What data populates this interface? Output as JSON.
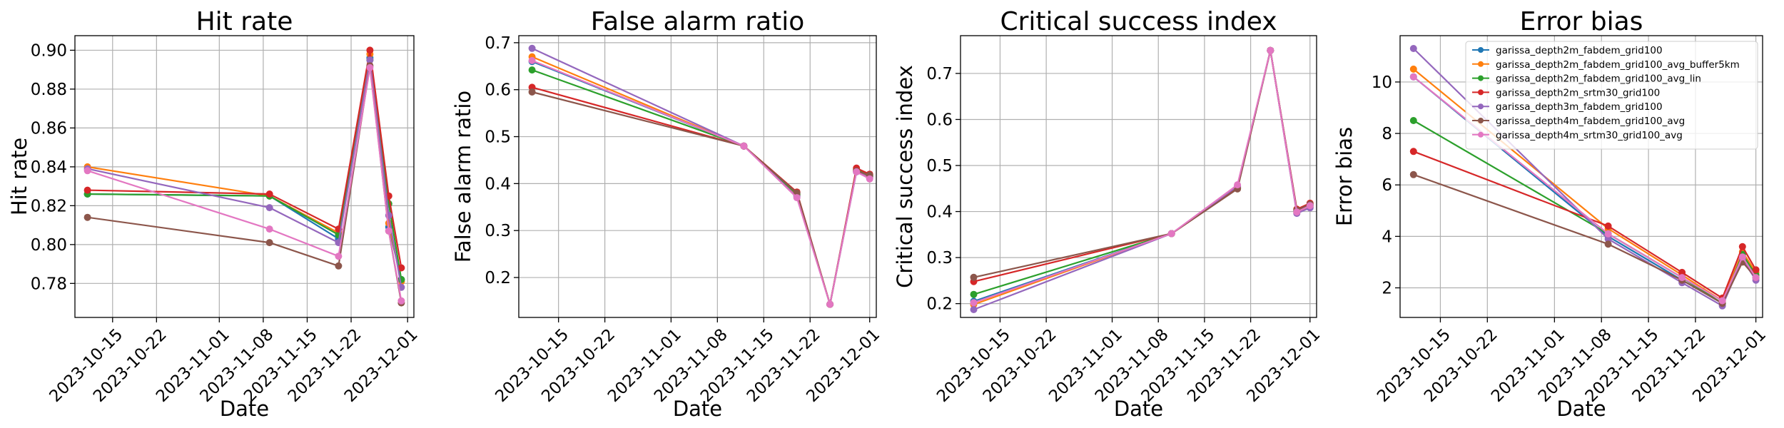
{
  "chart_data": [
    {
      "type": "line",
      "title": "Hit rate",
      "xlabel": "Date",
      "ylabel": "Hit rate",
      "x_tick_labels": [
        "2023-10-15",
        "2023-10-22",
        "2023-11-01",
        "2023-11-08",
        "2023-11-15",
        "2023-11-22",
        "2023-12-01"
      ],
      "y_ticks": [
        0.78,
        0.8,
        0.82,
        0.84,
        0.86,
        0.88,
        0.9
      ],
      "y_tick_labels": [
        "0.78",
        "0.80",
        "0.82",
        "0.84",
        "0.86",
        "0.88",
        "0.90"
      ],
      "xlim": [
        "2023-10-09",
        "2023-12-02"
      ],
      "ylim": [
        0.7625,
        0.9075
      ],
      "grid": true,
      "series": [
        {
          "name": "garissa_depth2m_fabdem_grid100",
          "color": "#1f77b4",
          "x": [
            "2023-10-11",
            "2023-11-09",
            "2023-11-20",
            "2023-11-25",
            "2023-11-28",
            "2023-11-30"
          ],
          "y": [
            0.826,
            0.825,
            0.803,
            0.896,
            0.809,
            0.782
          ]
        },
        {
          "name": "garissa_depth2m_fabdem_grid100_avg_buffer5km",
          "color": "#ff7f0e",
          "x": [
            "2023-10-11",
            "2023-11-09",
            "2023-11-20",
            "2023-11-25",
            "2023-11-28",
            "2023-11-30"
          ],
          "y": [
            0.84,
            0.825,
            0.806,
            0.898,
            0.811,
            0.781
          ]
        },
        {
          "name": "garissa_depth2m_fabdem_grid100_avg_lin",
          "color": "#2ca02c",
          "x": [
            "2023-10-11",
            "2023-11-09",
            "2023-11-20",
            "2023-11-25",
            "2023-11-28",
            "2023-11-30"
          ],
          "y": [
            0.826,
            0.825,
            0.805,
            0.895,
            0.821,
            0.782
          ]
        },
        {
          "name": "garissa_depth2m_srtm30_grid100",
          "color": "#d62728",
          "x": [
            "2023-10-11",
            "2023-11-09",
            "2023-11-20",
            "2023-11-25",
            "2023-11-28",
            "2023-11-30"
          ],
          "y": [
            0.828,
            0.826,
            0.808,
            0.9,
            0.825,
            0.788
          ]
        },
        {
          "name": "garissa_depth3m_fabdem_grid100",
          "color": "#9467bd",
          "x": [
            "2023-10-11",
            "2023-11-09",
            "2023-11-20",
            "2023-11-25",
            "2023-11-28",
            "2023-11-30"
          ],
          "y": [
            0.839,
            0.819,
            0.801,
            0.895,
            0.815,
            0.778
          ]
        },
        {
          "name": "garissa_depth4m_fabdem_grid100_avg",
          "color": "#8c564b",
          "x": [
            "2023-10-11",
            "2023-11-09",
            "2023-11-20",
            "2023-11-25",
            "2023-11-28",
            "2023-11-30"
          ],
          "y": [
            0.814,
            0.801,
            0.789,
            0.892,
            0.807,
            0.77
          ]
        },
        {
          "name": "garissa_depth4m_srtm30_grid100_avg",
          "color": "#e377c2",
          "x": [
            "2023-10-11",
            "2023-11-09",
            "2023-11-20",
            "2023-11-25",
            "2023-11-28",
            "2023-11-30"
          ],
          "y": [
            0.838,
            0.808,
            0.794,
            0.891,
            0.807,
            0.771
          ]
        }
      ]
    },
    {
      "type": "line",
      "title": "False alarm ratio",
      "xlabel": "Date",
      "ylabel": "False alarm ratio",
      "x_tick_labels": [
        "2023-10-15",
        "2023-10-22",
        "2023-11-01",
        "2023-11-08",
        "2023-11-15",
        "2023-11-22",
        "2023-12-01"
      ],
      "y_ticks": [
        0.2,
        0.3,
        0.4,
        0.5,
        0.6,
        0.7
      ],
      "y_tick_labels": [
        "0.2",
        "0.3",
        "0.4",
        "0.5",
        "0.6",
        "0.7"
      ],
      "xlim": [
        "2023-10-09",
        "2023-12-02"
      ],
      "ylim": [
        0.115,
        0.715
      ],
      "grid": true,
      "series": [
        {
          "name": "garissa_depth2m_fabdem_grid100",
          "color": "#1f77b4",
          "x": [
            "2023-10-11",
            "2023-11-12",
            "2023-11-20",
            "2023-11-25",
            "2023-11-29",
            "2023-12-01"
          ],
          "y": [
            0.66,
            0.48,
            0.375,
            0.143,
            0.425,
            0.415
          ]
        },
        {
          "name": "garissa_depth2m_fabdem_grid100_avg_buffer5km",
          "color": "#ff7f0e",
          "x": [
            "2023-10-11",
            "2023-11-12",
            "2023-11-20",
            "2023-11-25",
            "2023-11-29",
            "2023-12-01"
          ],
          "y": [
            0.67,
            0.48,
            0.376,
            0.143,
            0.428,
            0.414
          ]
        },
        {
          "name": "garissa_depth2m_fabdem_grid100_avg_lin",
          "color": "#2ca02c",
          "x": [
            "2023-10-11",
            "2023-11-12",
            "2023-11-20",
            "2023-11-25",
            "2023-11-29",
            "2023-12-01"
          ],
          "y": [
            0.642,
            0.48,
            0.378,
            0.143,
            0.43,
            0.416
          ]
        },
        {
          "name": "garissa_depth2m_srtm30_grid100",
          "color": "#d62728",
          "x": [
            "2023-10-11",
            "2023-11-12",
            "2023-11-20",
            "2023-11-25",
            "2023-11-29",
            "2023-12-01"
          ],
          "y": [
            0.605,
            0.48,
            0.382,
            0.143,
            0.433,
            0.42
          ]
        },
        {
          "name": "garissa_depth3m_fabdem_grid100",
          "color": "#9467bd",
          "x": [
            "2023-10-11",
            "2023-11-12",
            "2023-11-20",
            "2023-11-25",
            "2023-11-29",
            "2023-12-01"
          ],
          "y": [
            0.688,
            0.48,
            0.372,
            0.143,
            0.426,
            0.412
          ]
        },
        {
          "name": "garissa_depth4m_fabdem_grid100_avg",
          "color": "#8c564b",
          "x": [
            "2023-10-11",
            "2023-11-12",
            "2023-11-20",
            "2023-11-25",
            "2023-11-29",
            "2023-12-01"
          ],
          "y": [
            0.595,
            0.48,
            0.38,
            0.143,
            0.427,
            0.418
          ]
        },
        {
          "name": "garissa_depth4m_srtm30_grid100_avg",
          "color": "#e377c2",
          "x": [
            "2023-10-11",
            "2023-11-12",
            "2023-11-20",
            "2023-11-25",
            "2023-11-29",
            "2023-12-01"
          ],
          "y": [
            0.662,
            0.48,
            0.37,
            0.143,
            0.425,
            0.41
          ]
        }
      ]
    },
    {
      "type": "line",
      "title": "Critical success index",
      "xlabel": "Date",
      "ylabel": "Critical success index",
      "x_tick_labels": [
        "2023-10-15",
        "2023-10-22",
        "2023-11-01",
        "2023-11-08",
        "2023-11-15",
        "2023-11-22",
        "2023-12-01"
      ],
      "y_ticks": [
        0.2,
        0.3,
        0.4,
        0.5,
        0.6,
        0.7
      ],
      "y_tick_labels": [
        "0.2",
        "0.3",
        "0.4",
        "0.5",
        "0.6",
        "0.7"
      ],
      "xlim": [
        "2023-10-09",
        "2023-12-02"
      ],
      "ylim": [
        0.17,
        0.782
      ],
      "grid": true,
      "series": [
        {
          "name": "garissa_depth2m_fabdem_grid100",
          "color": "#1f77b4",
          "x": [
            "2023-10-11",
            "2023-11-10",
            "2023-11-20",
            "2023-11-25",
            "2023-11-29",
            "2023-12-01"
          ],
          "y": [
            0.205,
            0.352,
            0.452,
            0.75,
            0.4,
            0.412
          ]
        },
        {
          "name": "garissa_depth2m_fabdem_grid100_avg_buffer5km",
          "color": "#ff7f0e",
          "x": [
            "2023-10-11",
            "2023-11-10",
            "2023-11-20",
            "2023-11-25",
            "2023-11-29",
            "2023-12-01"
          ],
          "y": [
            0.198,
            0.352,
            0.453,
            0.75,
            0.398,
            0.41
          ]
        },
        {
          "name": "garissa_depth2m_fabdem_grid100_avg_lin",
          "color": "#2ca02c",
          "x": [
            "2023-10-11",
            "2023-11-10",
            "2023-11-20",
            "2023-11-25",
            "2023-11-29",
            "2023-12-01"
          ],
          "y": [
            0.22,
            0.352,
            0.451,
            0.75,
            0.402,
            0.414
          ]
        },
        {
          "name": "garissa_depth2m_srtm30_grid100",
          "color": "#d62728",
          "x": [
            "2023-10-11",
            "2023-11-10",
            "2023-11-20",
            "2023-11-25",
            "2023-11-29",
            "2023-12-01"
          ],
          "y": [
            0.248,
            0.352,
            0.45,
            0.75,
            0.405,
            0.418
          ]
        },
        {
          "name": "garissa_depth3m_fabdem_grid100",
          "color": "#9467bd",
          "x": [
            "2023-10-11",
            "2023-11-10",
            "2023-11-20",
            "2023-11-25",
            "2023-11-29",
            "2023-12-01"
          ],
          "y": [
            0.187,
            0.352,
            0.455,
            0.75,
            0.396,
            0.408
          ]
        },
        {
          "name": "garissa_depth4m_fabdem_grid100_avg",
          "color": "#8c564b",
          "x": [
            "2023-10-11",
            "2023-11-10",
            "2023-11-20",
            "2023-11-25",
            "2023-11-29",
            "2023-12-01"
          ],
          "y": [
            0.257,
            0.352,
            0.449,
            0.75,
            0.403,
            0.416
          ]
        },
        {
          "name": "garissa_depth4m_srtm30_grid100_avg",
          "color": "#e377c2",
          "x": [
            "2023-10-11",
            "2023-11-10",
            "2023-11-20",
            "2023-11-25",
            "2023-11-29",
            "2023-12-01"
          ],
          "y": [
            0.202,
            0.352,
            0.458,
            0.75,
            0.399,
            0.413
          ]
        }
      ]
    },
    {
      "type": "line",
      "title": "Error bias",
      "xlabel": "Date",
      "ylabel": "Error bias",
      "x_tick_labels": [
        "2023-10-15",
        "2023-10-22",
        "2023-11-01",
        "2023-11-08",
        "2023-11-15",
        "2023-11-22",
        "2023-12-01"
      ],
      "y_ticks": [
        2,
        4,
        6,
        8,
        10
      ],
      "y_tick_labels": [
        "2",
        "4",
        "6",
        "8",
        "10"
      ],
      "xlim": [
        "2023-10-09",
        "2023-12-02"
      ],
      "ylim": [
        0.85,
        11.8
      ],
      "grid": true,
      "legend": "top-right",
      "series": [
        {
          "name": "garissa_depth2m_fabdem_grid100",
          "color": "#1f77b4",
          "x": [
            "2023-10-11",
            "2023-11-09",
            "2023-11-20",
            "2023-11-26",
            "2023-11-29",
            "2023-12-01"
          ],
          "y": [
            10.2,
            4.0,
            2.3,
            1.4,
            3.2,
            2.4
          ]
        },
        {
          "name": "garissa_depth2m_fabdem_grid100_avg_buffer5km",
          "color": "#ff7f0e",
          "x": [
            "2023-10-11",
            "2023-11-09",
            "2023-11-20",
            "2023-11-26",
            "2023-11-29",
            "2023-12-01"
          ],
          "y": [
            10.5,
            4.3,
            2.5,
            1.5,
            3.4,
            2.6
          ]
        },
        {
          "name": "garissa_depth2m_fabdem_grid100_avg_lin",
          "color": "#2ca02c",
          "x": [
            "2023-10-11",
            "2023-11-09",
            "2023-11-20",
            "2023-11-26",
            "2023-11-29",
            "2023-12-01"
          ],
          "y": [
            8.5,
            4.1,
            2.4,
            1.4,
            3.3,
            2.5
          ]
        },
        {
          "name": "garissa_depth2m_srtm30_grid100",
          "color": "#d62728",
          "x": [
            "2023-10-11",
            "2023-11-09",
            "2023-11-20",
            "2023-11-26",
            "2023-11-29",
            "2023-12-01"
          ],
          "y": [
            7.3,
            4.4,
            2.6,
            1.6,
            3.6,
            2.7
          ]
        },
        {
          "name": "garissa_depth3m_fabdem_grid100",
          "color": "#9467bd",
          "x": [
            "2023-10-11",
            "2023-11-09",
            "2023-11-20",
            "2023-11-26",
            "2023-11-29",
            "2023-12-01"
          ],
          "y": [
            11.3,
            3.9,
            2.2,
            1.3,
            3.1,
            2.3
          ]
        },
        {
          "name": "garissa_depth4m_fabdem_grid100_avg",
          "color": "#8c564b",
          "x": [
            "2023-10-11",
            "2023-11-09",
            "2023-11-20",
            "2023-11-26",
            "2023-11-29",
            "2023-12-01"
          ],
          "y": [
            6.4,
            3.7,
            2.3,
            1.4,
            3.0,
            2.4
          ]
        },
        {
          "name": "garissa_depth4m_srtm30_grid100_avg",
          "color": "#e377c2",
          "x": [
            "2023-10-11",
            "2023-11-09",
            "2023-11-20",
            "2023-11-26",
            "2023-11-29",
            "2023-12-01"
          ],
          "y": [
            10.2,
            4.1,
            2.4,
            1.5,
            3.2,
            2.4
          ]
        }
      ]
    }
  ]
}
